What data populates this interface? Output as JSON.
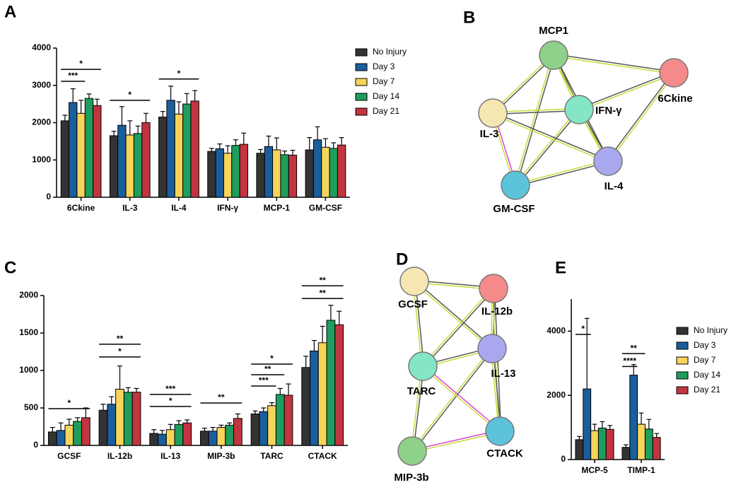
{
  "panel_labels": [
    "A",
    "B",
    "C",
    "D",
    "E"
  ],
  "chart_data": [
    {
      "type": "bar",
      "categories": [
        "6Ckine",
        "IL-3",
        "IL-4",
        "IFN-γ",
        "MCP-1",
        "GM-CSF"
      ],
      "ylim": [
        0,
        4000
      ],
      "yticks": [
        0,
        1000,
        2000,
        3000,
        4000
      ],
      "legend": true,
      "series": [
        {
          "name": "No Injury",
          "color": "#333333",
          "values": [
            2050,
            1650,
            2150,
            1230,
            1180,
            1270
          ],
          "errors": [
            150,
            120,
            150,
            80,
            100,
            330
          ]
        },
        {
          "name": "Day 3",
          "color": "#1b5e9c",
          "values": [
            2540,
            1930,
            2600,
            1300,
            1360,
            1540
          ],
          "errors": [
            370,
            500,
            380,
            130,
            280,
            350
          ]
        },
        {
          "name": "Day 7",
          "color": "#f7d45a",
          "values": [
            2250,
            1670,
            2230,
            1180,
            1270,
            1340
          ],
          "errors": [
            350,
            380,
            330,
            200,
            320,
            230
          ]
        },
        {
          "name": "Day 14",
          "color": "#1f9d5c",
          "values": [
            2650,
            1710,
            2500,
            1390,
            1140,
            1310
          ],
          "errors": [
            120,
            200,
            280,
            150,
            100,
            150
          ]
        },
        {
          "name": "Day 21",
          "color": "#c2343f",
          "values": [
            2460,
            2000,
            2580,
            1420,
            1130,
            1400
          ],
          "errors": [
            170,
            250,
            280,
            300,
            130,
            200
          ]
        }
      ],
      "annotations": [
        "*",
        "***",
        "*",
        "*"
      ]
    },
    {
      "type": "bar",
      "categories": [
        "GCSF",
        "IL-12b",
        "IL-13",
        "MIP-3b",
        "TARC",
        "CTACK"
      ],
      "ylim": [
        0,
        2000
      ],
      "yticks": [
        0,
        500,
        1000,
        1500,
        2000
      ],
      "legend": false,
      "series": [
        {
          "color": "#333333",
          "values": [
            180,
            470,
            160,
            190,
            420,
            1040
          ],
          "errors": [
            60,
            80,
            50,
            40,
            40,
            150
          ]
        },
        {
          "color": "#1b5e9c",
          "values": [
            200,
            550,
            150,
            190,
            450,
            1260
          ],
          "errors": [
            100,
            100,
            50,
            50,
            50,
            140
          ]
        },
        {
          "color": "#f7d45a",
          "values": [
            270,
            750,
            210,
            240,
            530,
            1370
          ],
          "errors": [
            80,
            310,
            70,
            30,
            40,
            220
          ]
        },
        {
          "color": "#1f9d5c",
          "values": [
            320,
            710,
            280,
            270,
            680,
            1670
          ],
          "errors": [
            50,
            60,
            50,
            30,
            80,
            200
          ]
        },
        {
          "color": "#c2343f",
          "values": [
            370,
            710,
            300,
            360,
            670,
            1610
          ],
          "errors": [
            130,
            50,
            40,
            60,
            150,
            180
          ]
        }
      ],
      "annotations": [
        "*",
        "**",
        "*",
        "***",
        "*",
        "**",
        "*",
        "**",
        "***",
        "**",
        "**"
      ]
    },
    {
      "type": "bar",
      "categories": [
        "MCP-5",
        "TIMP-1"
      ],
      "ylim": [
        0,
        5000
      ],
      "yticks": [
        0,
        2000,
        4000
      ],
      "legend": true,
      "series": [
        {
          "name": "No Injury",
          "color": "#333333",
          "values": [
            620,
            380
          ],
          "errors": [
            100,
            80
          ]
        },
        {
          "name": "Day 3",
          "color": "#1b5e9c",
          "values": [
            2200,
            2630
          ],
          "errors": [
            2200,
            330
          ]
        },
        {
          "name": "Day 7",
          "color": "#f7d45a",
          "values": [
            900,
            1100
          ],
          "errors": [
            200,
            350
          ]
        },
        {
          "name": "Day 14",
          "color": "#1f9d5c",
          "values": [
            980,
            950
          ],
          "errors": [
            200,
            300
          ]
        },
        {
          "name": "Day 21",
          "color": "#c2343f",
          "values": [
            940,
            690
          ],
          "errors": [
            120,
            120
          ]
        }
      ],
      "annotations": [
        "*",
        "**",
        "****"
      ]
    }
  ],
  "networks": [
    {
      "nodes": [
        {
          "label": "MCP1",
          "color": "#8fd18a"
        },
        {
          "label": "6Ckine",
          "color": "#f48a8a"
        },
        {
          "label": "IFN-γ",
          "color": "#84e6c4"
        },
        {
          "label": "IL-3",
          "color": "#f6e7b2"
        },
        {
          "label": "IL-4",
          "color": "#a9a8ee"
        },
        {
          "label": "GM-CSF",
          "color": "#5cc3da"
        }
      ]
    },
    {
      "nodes": [
        {
          "label": "GCSF",
          "color": "#f6e7b2"
        },
        {
          "label": "IL-12b",
          "color": "#f48a8a"
        },
        {
          "label": "IL-13",
          "color": "#a9a8ee"
        },
        {
          "label": "TARC",
          "color": "#84e6c4"
        },
        {
          "label": "MIP-3b",
          "color": "#8fd18a"
        },
        {
          "label": "CTACK",
          "color": "#5cc3da"
        }
      ]
    }
  ]
}
